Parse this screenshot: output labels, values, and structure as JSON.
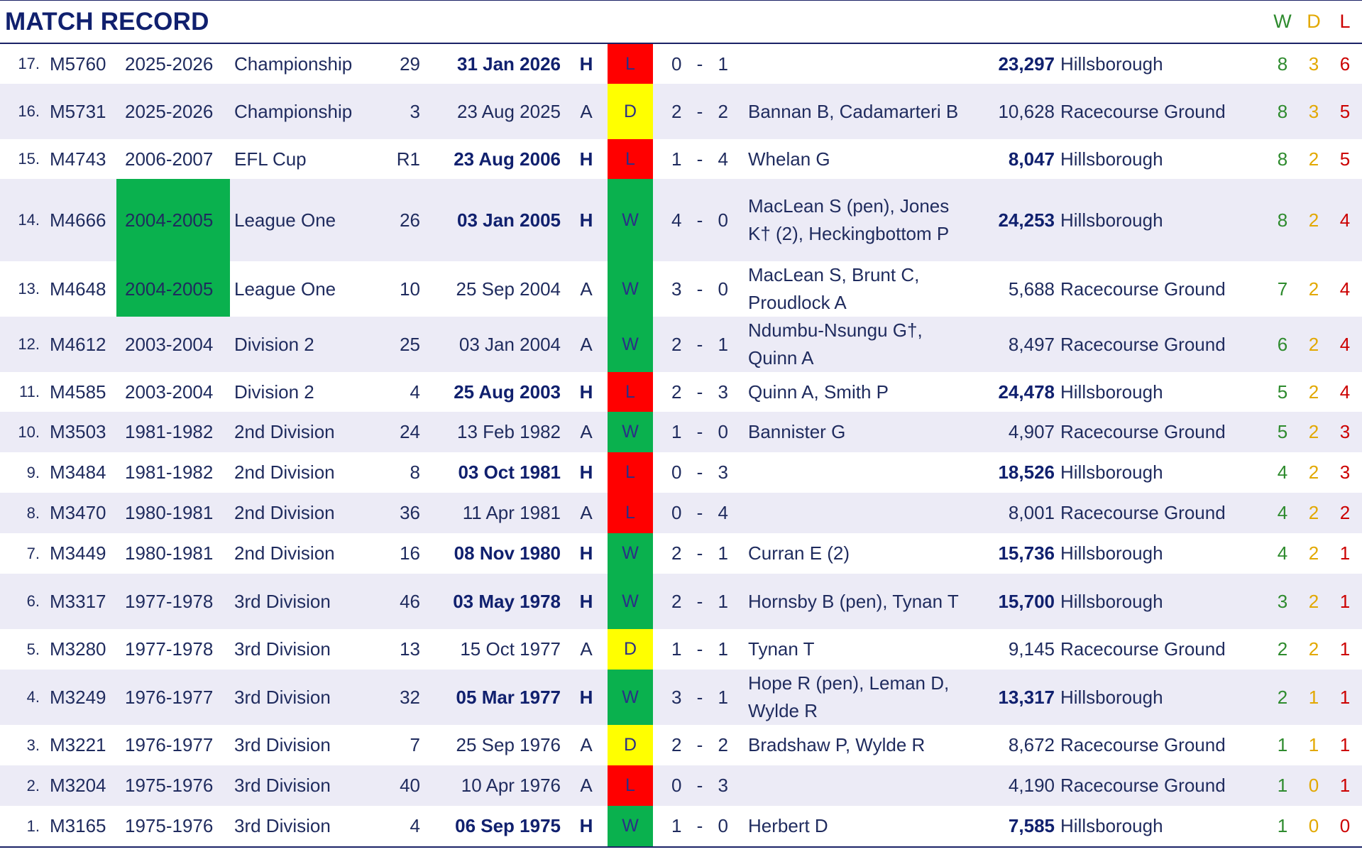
{
  "header": {
    "title": "MATCH RECORD",
    "w_label": "W",
    "d_label": "D",
    "l_label": "L"
  },
  "colors": {
    "win": "#0ab14e",
    "loss": "#ff0000",
    "draw": "#ffff00",
    "navy": "#10206e"
  },
  "matches": [
    {
      "idx": "17.",
      "id": "M5760",
      "season": "2025-2026",
      "comp": "Championship",
      "round": "29",
      "date": "31 Jan 2026",
      "ha": "H",
      "result": "L",
      "home_goals": "0",
      "away_goals": "1",
      "scorers": "",
      "attendance": "23,297",
      "venue": "Hillsborough",
      "w": "8",
      "d": "3",
      "l": "6"
    },
    {
      "idx": "16.",
      "id": "M5731",
      "season": "2025-2026",
      "comp": "Championship",
      "round": "3",
      "date": "23 Aug 2025",
      "ha": "A",
      "result": "D",
      "home_goals": "2",
      "away_goals": "2",
      "scorers": "Bannan B, Cadamarteri B",
      "attendance": "10,628",
      "venue": "Racecourse Ground",
      "w": "8",
      "d": "3",
      "l": "5"
    },
    {
      "idx": "15.",
      "id": "M4743",
      "season": "2006-2007",
      "comp": "EFL Cup",
      "round": "R1",
      "date": "23 Aug 2006",
      "ha": "H",
      "result": "L",
      "home_goals": "1",
      "away_goals": "4",
      "scorers": "Whelan G",
      "attendance": "8,047",
      "venue": "Hillsborough",
      "w": "8",
      "d": "2",
      "l": "5"
    },
    {
      "idx": "14.",
      "id": "M4666",
      "season": "2004-2005",
      "comp": "League One",
      "round": "26",
      "date": "03 Jan 2005",
      "ha": "H",
      "result": "W",
      "home_goals": "4",
      "away_goals": "0",
      "scorers": "MacLean S (pen), Jones K† (2), Heckingbottom P",
      "attendance": "24,253",
      "venue": "Hillsborough",
      "w": "8",
      "d": "2",
      "l": "4"
    },
    {
      "idx": "13.",
      "id": "M4648",
      "season": "2004-2005",
      "comp": "League One",
      "round": "10",
      "date": "25 Sep 2004",
      "ha": "A",
      "result": "W",
      "home_goals": "3",
      "away_goals": "0",
      "scorers": "MacLean S, Brunt C, Proudlock A",
      "attendance": "5,688",
      "venue": "Racecourse Ground",
      "w": "7",
      "d": "2",
      "l": "4"
    },
    {
      "idx": "12.",
      "id": "M4612",
      "season": "2003-2004",
      "comp": "Division 2",
      "round": "25",
      "date": "03 Jan 2004",
      "ha": "A",
      "result": "W",
      "home_goals": "2",
      "away_goals": "1",
      "scorers": "Ndumbu-Nsungu G†, Quinn A",
      "attendance": "8,497",
      "venue": "Racecourse Ground",
      "w": "6",
      "d": "2",
      "l": "4"
    },
    {
      "idx": "11.",
      "id": "M4585",
      "season": "2003-2004",
      "comp": "Division 2",
      "round": "4",
      "date": "25 Aug 2003",
      "ha": "H",
      "result": "L",
      "home_goals": "2",
      "away_goals": "3",
      "scorers": "Quinn A, Smith P",
      "attendance": "24,478",
      "venue": "Hillsborough",
      "w": "5",
      "d": "2",
      "l": "4"
    },
    {
      "idx": "10.",
      "id": "M3503",
      "season": "1981-1982",
      "comp": "2nd Division",
      "round": "24",
      "date": "13 Feb 1982",
      "ha": "A",
      "result": "W",
      "home_goals": "1",
      "away_goals": "0",
      "scorers": "Bannister G",
      "attendance": "4,907",
      "venue": "Racecourse Ground",
      "w": "5",
      "d": "2",
      "l": "3"
    },
    {
      "idx": "9.",
      "id": "M3484",
      "season": "1981-1982",
      "comp": "2nd Division",
      "round": "8",
      "date": "03 Oct 1981",
      "ha": "H",
      "result": "L",
      "home_goals": "0",
      "away_goals": "3",
      "scorers": "",
      "attendance": "18,526",
      "venue": "Hillsborough",
      "w": "4",
      "d": "2",
      "l": "3"
    },
    {
      "idx": "8.",
      "id": "M3470",
      "season": "1980-1981",
      "comp": "2nd Division",
      "round": "36",
      "date": "11 Apr 1981",
      "ha": "A",
      "result": "L",
      "home_goals": "0",
      "away_goals": "4",
      "scorers": "",
      "attendance": "8,001",
      "venue": "Racecourse Ground",
      "w": "4",
      "d": "2",
      "l": "2"
    },
    {
      "idx": "7.",
      "id": "M3449",
      "season": "1980-1981",
      "comp": "2nd Division",
      "round": "16",
      "date": "08 Nov 1980",
      "ha": "H",
      "result": "W",
      "home_goals": "2",
      "away_goals": "1",
      "scorers": "Curran E (2)",
      "attendance": "15,736",
      "venue": "Hillsborough",
      "w": "4",
      "d": "2",
      "l": "1"
    },
    {
      "idx": "6.",
      "id": "M3317",
      "season": "1977-1978",
      "comp": "3rd Division",
      "round": "46",
      "date": "03 May 1978",
      "ha": "H",
      "result": "W",
      "home_goals": "2",
      "away_goals": "1",
      "scorers": "Hornsby B (pen), Tynan T",
      "attendance": "15,700",
      "venue": "Hillsborough",
      "w": "3",
      "d": "2",
      "l": "1"
    },
    {
      "idx": "5.",
      "id": "M3280",
      "season": "1977-1978",
      "comp": "3rd Division",
      "round": "13",
      "date": "15 Oct 1977",
      "ha": "A",
      "result": "D",
      "home_goals": "1",
      "away_goals": "1",
      "scorers": "Tynan T",
      "attendance": "9,145",
      "venue": "Racecourse Ground",
      "w": "2",
      "d": "2",
      "l": "1"
    },
    {
      "idx": "4.",
      "id": "M3249",
      "season": "1976-1977",
      "comp": "3rd Division",
      "round": "32",
      "date": "05 Mar 1977",
      "ha": "H",
      "result": "W",
      "home_goals": "3",
      "away_goals": "1",
      "scorers": "Hope R (pen), Leman D, Wylde R",
      "attendance": "13,317",
      "venue": "Hillsborough",
      "w": "2",
      "d": "1",
      "l": "1"
    },
    {
      "idx": "3.",
      "id": "M3221",
      "season": "1976-1977",
      "comp": "3rd Division",
      "round": "7",
      "date": "25 Sep 1976",
      "ha": "A",
      "result": "D",
      "home_goals": "2",
      "away_goals": "2",
      "scorers": "Bradshaw P, Wylde R",
      "attendance": "8,672",
      "venue": "Racecourse Ground",
      "w": "1",
      "d": "1",
      "l": "1"
    },
    {
      "idx": "2.",
      "id": "M3204",
      "season": "1975-1976",
      "comp": "3rd Division",
      "round": "40",
      "date": "10 Apr 1976",
      "ha": "A",
      "result": "L",
      "home_goals": "0",
      "away_goals": "3",
      "scorers": "",
      "attendance": "4,190",
      "venue": "Racecourse Ground",
      "w": "1",
      "d": "0",
      "l": "1"
    },
    {
      "idx": "1.",
      "id": "M3165",
      "season": "1975-1976",
      "comp": "3rd Division",
      "round": "4",
      "date": "06 Sep 1975",
      "ha": "H",
      "result": "W",
      "home_goals": "1",
      "away_goals": "0",
      "scorers": "Herbert D",
      "attendance": "7,585",
      "venue": "Hillsborough",
      "w": "1",
      "d": "0",
      "l": "0"
    }
  ]
}
